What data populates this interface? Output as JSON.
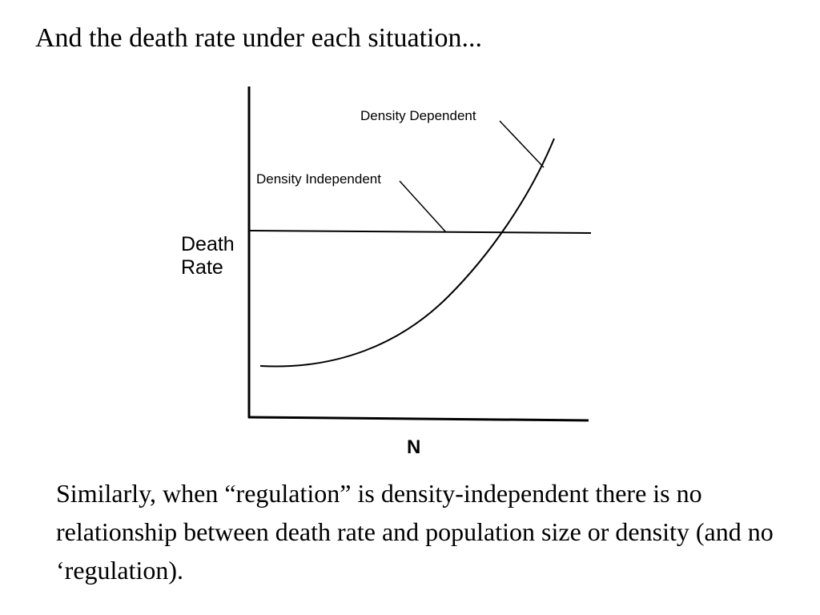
{
  "slide": {
    "title": "And the death rate under each situation...",
    "caption": "Similarly, when “regulation” is density-independent there is no relationship between death rate and population size or density (and no ‘regulation)."
  },
  "diagram": {
    "y_axis_label_line1": "Death",
    "y_axis_label_line2": "Rate",
    "x_axis_label": "N",
    "label_density_dependent": "Density Dependent",
    "label_density_independent": "Density Independent",
    "line_color": "#000000"
  }
}
